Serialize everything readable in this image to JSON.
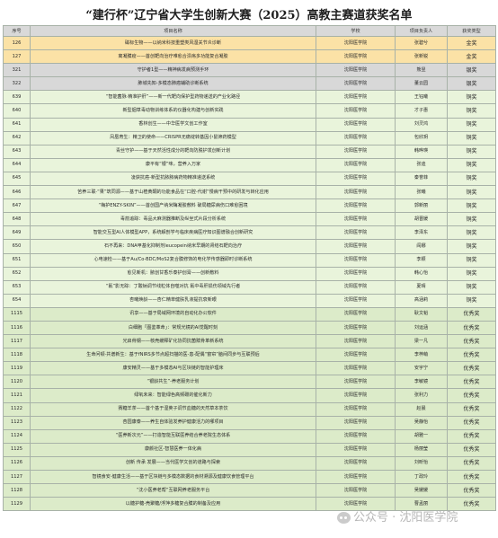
{
  "title": "“建行杯”辽宁省大学生创新大赛（2025）高教主赛道获奖名单",
  "headers": {
    "no": "序号",
    "project": "项目名称",
    "school": "学校",
    "leader": "项目负责人",
    "award": "获奖类型"
  },
  "rows": [
    {
      "no": "126",
      "project": "磁标生物——以纳米科技重塑类风湿关节炎诊断",
      "school": "沈阳医学院",
      "leader": "张碧兮",
      "award": "金奖",
      "tier": "gold"
    },
    {
      "no": "127",
      "project": "离凝膜疫——首创靶向治疗难愈合溃疡多功能复合凝胶",
      "school": "沈阳医学院",
      "leader": "张新锐",
      "award": "金奖",
      "tier": "gold"
    },
    {
      "no": "321",
      "project": "守护者1型——精神病发病预测手环",
      "school": "沈阳医学院",
      "leader": "熊昱",
      "award": "银奖",
      "tier": "silver"
    },
    {
      "no": "322",
      "project": "肺城先知-多模态肺癌辅助诊断系统",
      "school": "沈阳医学院",
      "leader": "董云园",
      "award": "银奖",
      "tier": "silver"
    },
    {
      "no": "639",
      "project": "“智能菌脉·精准护肝”——新一代靶向保护型药物递送的产业化路径",
      "school": "沈阳医学院",
      "leader": "王钰曦",
      "award": "铜奖",
      "tier": "bronze"
    },
    {
      "no": "640",
      "project": "新型烟草毒动物训练体系的仪器化构建与创新实践",
      "school": "沈阳医学院",
      "leader": "才子惠",
      "award": "铜奖",
      "tier": "bronze"
    },
    {
      "no": "641",
      "project": "香林创生——中华医学文创工作室",
      "school": "沈阳医学院",
      "leader": "刘灵鸿",
      "award": "铜奖",
      "tier": "bronze"
    },
    {
      "no": "642",
      "project": "凤凰育生：精卫的使命——CRISPR无痛绽转基因小鼠筛药模型",
      "school": "沈阳医学院",
      "leader": "包欣玥",
      "award": "铜奖",
      "tier": "bronze"
    },
    {
      "no": "643",
      "project": "青丝守护——基于天然活性成分的靶向防脱护发创新计划",
      "school": "沈阳医学院",
      "leader": "韩晔瑛",
      "award": "铜奖",
      "tier": "bronze"
    },
    {
      "no": "644",
      "project": "康平有“银”味，营养入万家",
      "school": "沈阳医学院",
      "leader": "张迪",
      "award": "铜奖",
      "tier": "bronze"
    },
    {
      "no": "645",
      "project": "凌获抗癌-新型抗脓脓病药物精准递送系统",
      "school": "沈阳医学院",
      "leader": "秦誉菲",
      "award": "铜奖",
      "tier": "bronze"
    },
    {
      "no": "646",
      "project": "苦养三联·“果”筑同源——基于山楂黄酮的功能食品在“口腔-代谢”慢病干预中的研发与转化应用",
      "school": "沈阳医学院",
      "leader": "张曦",
      "award": "铜奖",
      "tier": "bronze"
    },
    {
      "no": "647",
      "project": "“梅护ENZY-SKIN”——首创国产纳米酶凝胶敷料 破局糖尿病伤口难愈困境",
      "school": "沈阳医学院",
      "leader": "郭新丽",
      "award": "铜奖",
      "tier": "bronze"
    },
    {
      "no": "648",
      "project": "毒箭追踪：毒品大麻测器推断及纵坐式片段分析系统",
      "school": "沈阳医学院",
      "leader": "胡晋媛",
      "award": "铜奖",
      "tier": "bronze"
    },
    {
      "no": "649",
      "project": "智能交互型AI人体模型APP，系统解剖学与临床疾病医疗知识图谱融合创新研究",
      "school": "沈阳医学院",
      "leader": "李泽东",
      "award": "铜奖",
      "tier": "bronze"
    },
    {
      "no": "650",
      "project": "石不再来：DNA甲基化抑制剂leucopein纳米早期的肾结石靶向治疗",
      "school": "沈阳医学院",
      "leader": "阎娜",
      "award": "铜奖",
      "tier": "bronze"
    },
    {
      "no": "651",
      "project": "心电速检——基于Au/Co-BDC/MoS2复合膜修饰的电化学传感器即时诊断系统",
      "school": "沈阳医学院",
      "leader": "李颖",
      "award": "铜奖",
      "tier": "bronze"
    },
    {
      "no": "652",
      "project": "愈见新机：脓创甘香乐泰护创膏——创新敷料",
      "school": "沈阳医学院",
      "leader": "韩心怡",
      "award": "铜奖",
      "tier": "bronze"
    },
    {
      "no": "653",
      "project": "“氟”影无踪：丁酸钠调节线粒体自噬对抗 氟中毒肝损伤领域先行者",
      "school": "沈阳医学院",
      "leader": "夏晴",
      "award": "铜奖",
      "tier": "bronze"
    },
    {
      "no": "654",
      "project": "杏曦焕龄——杏仁精萃健肤乳液提抗衰新眼",
      "school": "沈阳医学院",
      "leader": "高涵莉",
      "award": "铜奖",
      "tier": "bronze"
    },
    {
      "no": "1115",
      "project": "讯享——基于局域网环境的自动化办公软件",
      "school": "沈阳医学院",
      "leader": "耿文韬",
      "award": "优秀奖",
      "tier": "excellent"
    },
    {
      "no": "1116",
      "project": "白细胞「图鉴革命」：常规光镜的AI觉醒时刻",
      "school": "沈阳医学院",
      "leader": "刘运涵",
      "award": "优秀奖",
      "tier": "excellent"
    },
    {
      "no": "1117",
      "project": "光启骨钢——核壳缓释矿化协同抗菌赋骨革新系统",
      "school": "沈阳医学院",
      "leader": "梁一凡",
      "award": "优秀奖",
      "tier": "excellent"
    },
    {
      "no": "1118",
      "project": "生命问顿·共谱新生：基于fNIRS多节点超扫描的医-患-配偶“窗帘”脑间同步与互联预后",
      "school": "沈阳医学院",
      "leader": "李梓萌",
      "award": "优秀奖",
      "tier": "excellent"
    },
    {
      "no": "1119",
      "project": "康安精灵——基于多模态AI与区块链的智能护理床",
      "school": "沈阳医学院",
      "leader": "安宇宁",
      "award": "优秀奖",
      "tier": "excellent"
    },
    {
      "no": "1120",
      "project": "“银龄共生”-养老服务计划",
      "school": "沈阳医学院",
      "leader": "李敏镜",
      "award": "优秀奖",
      "tier": "excellent"
    },
    {
      "no": "1121",
      "project": "绿氧未来：智能绿色高频碳的催化新力",
      "school": "沈阳医学院",
      "leader": "张利力",
      "award": "优秀奖",
      "tier": "excellent"
    },
    {
      "no": "1122",
      "project": "赛糖羊茶——首个基于湿荚子调节血糖的天然草本茶饮",
      "school": "沈阳医学院",
      "leader": "赵晨",
      "award": "优秀奖",
      "tier": "excellent"
    },
    {
      "no": "1123",
      "project": "杏园康泰——养生自体验发养护健康活力的哪项目",
      "school": "沈阳医学院",
      "leader": "吴静怡",
      "award": "优秀奖",
      "tier": "excellent"
    },
    {
      "no": "1124",
      "project": "“医养新次元”——打造智能互联医养结合养老院生态体系",
      "school": "沈阳医学院",
      "leader": "胡雅一",
      "award": "优秀奖",
      "tier": "excellent"
    },
    {
      "no": "1125",
      "project": "康颜社区-智慧医养一体化病",
      "school": "沈阳医学院",
      "leader": "杨丽莹",
      "award": "优秀奖",
      "tier": "excellent"
    },
    {
      "no": "1126",
      "project": "创新 传承 发展——当代医学文创的道路与探索",
      "school": "沈阳医学院",
      "leader": "刘昕怡",
      "award": "优秀奖",
      "tier": "excellent"
    },
    {
      "no": "1127",
      "project": "智镜食安-健康生活——基于区块链与多模态数据的食材溯源及健康饮食管理平台",
      "school": "沈阳医学院",
      "leader": "丁政玲",
      "award": "优秀奖",
      "tier": "excellent"
    },
    {
      "no": "1128",
      "project": "“沈小医养老帮”互联网养老服务平台",
      "school": "沈阳医学院",
      "leader": "吴媛媛",
      "award": "优秀奖",
      "tier": "excellent"
    },
    {
      "no": "1129",
      "project": "以糖护糖-壳聚糖/浮萍多糖复合膜的制备及应用",
      "school": "沈阳医学院",
      "leader": "曹孟丽",
      "award": "优秀奖",
      "tier": "excellent"
    }
  ],
  "watermark": "公众号 · 沈阳医学院"
}
